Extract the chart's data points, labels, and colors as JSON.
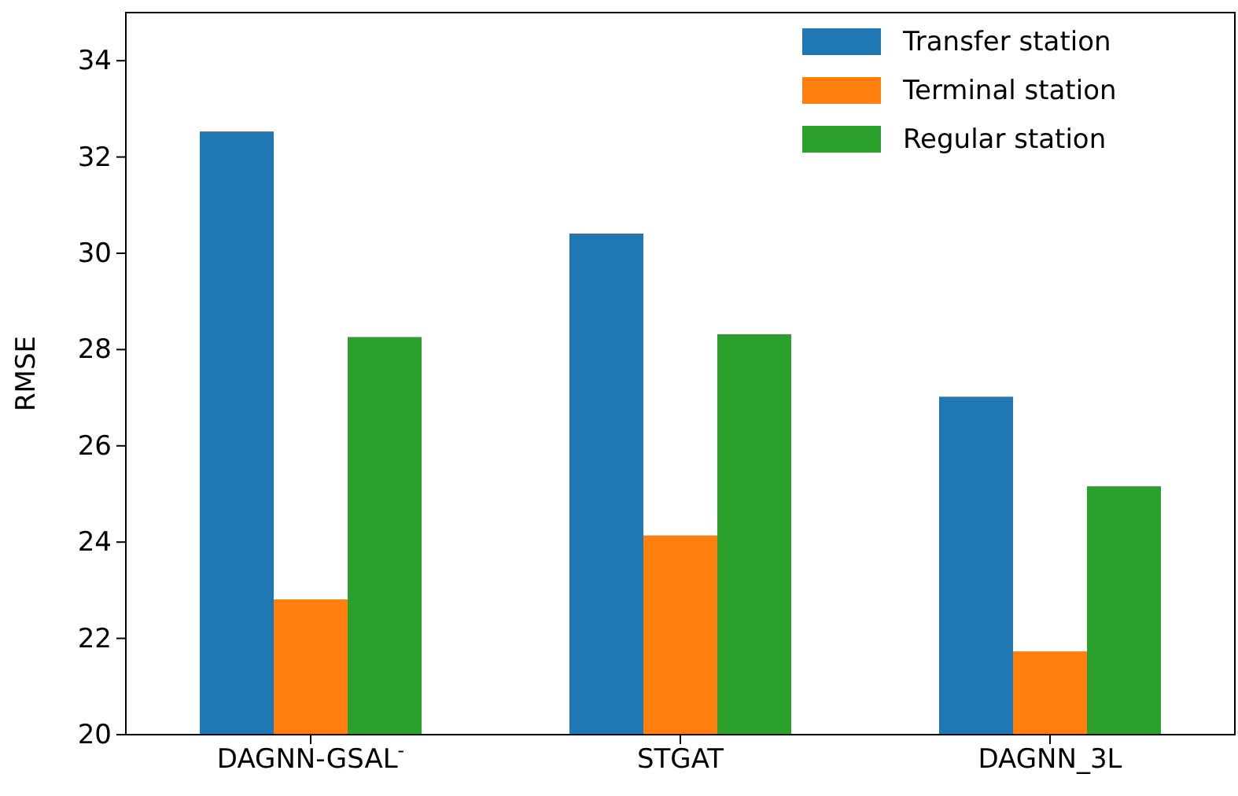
{
  "chart_data": {
    "type": "bar",
    "ylabel": "RMSE",
    "categories": [
      "DAGNN-GSAL$^{-}$",
      "STGAT",
      "DAGNN_3L"
    ],
    "series": [
      {
        "name": "Transfer station",
        "color": "#1f77b4",
        "values": [
          32.53,
          30.41,
          27.02
        ]
      },
      {
        "name": "Terminal station",
        "color": "#ff7f0e",
        "values": [
          22.81,
          24.14,
          21.73
        ]
      },
      {
        "name": "Regular station",
        "color": "#2ca02c",
        "values": [
          28.26,
          28.32,
          25.16
        ]
      }
    ],
    "ylim": [
      20,
      35
    ],
    "yticks": [
      20,
      22,
      24,
      26,
      28,
      30,
      32,
      34
    ],
    "legend": "top right",
    "grid": false
  }
}
